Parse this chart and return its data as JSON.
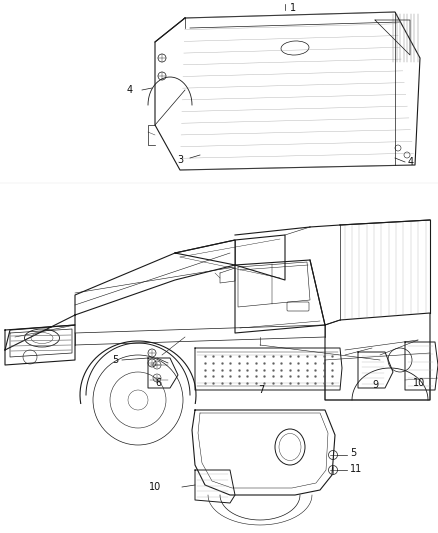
{
  "background_color": "#ffffff",
  "fig_width": 4.38,
  "fig_height": 5.33,
  "dpi": 100,
  "line_color": "#1a1a1a",
  "label_fontsize": 7,
  "label_color": "#111111",
  "leader_lw": 0.5,
  "part_lw": 0.7,
  "truck_lw": 0.8,
  "gray_light": "#aaaaaa",
  "gray_mid": "#888888",
  "gray_dark": "#555555"
}
